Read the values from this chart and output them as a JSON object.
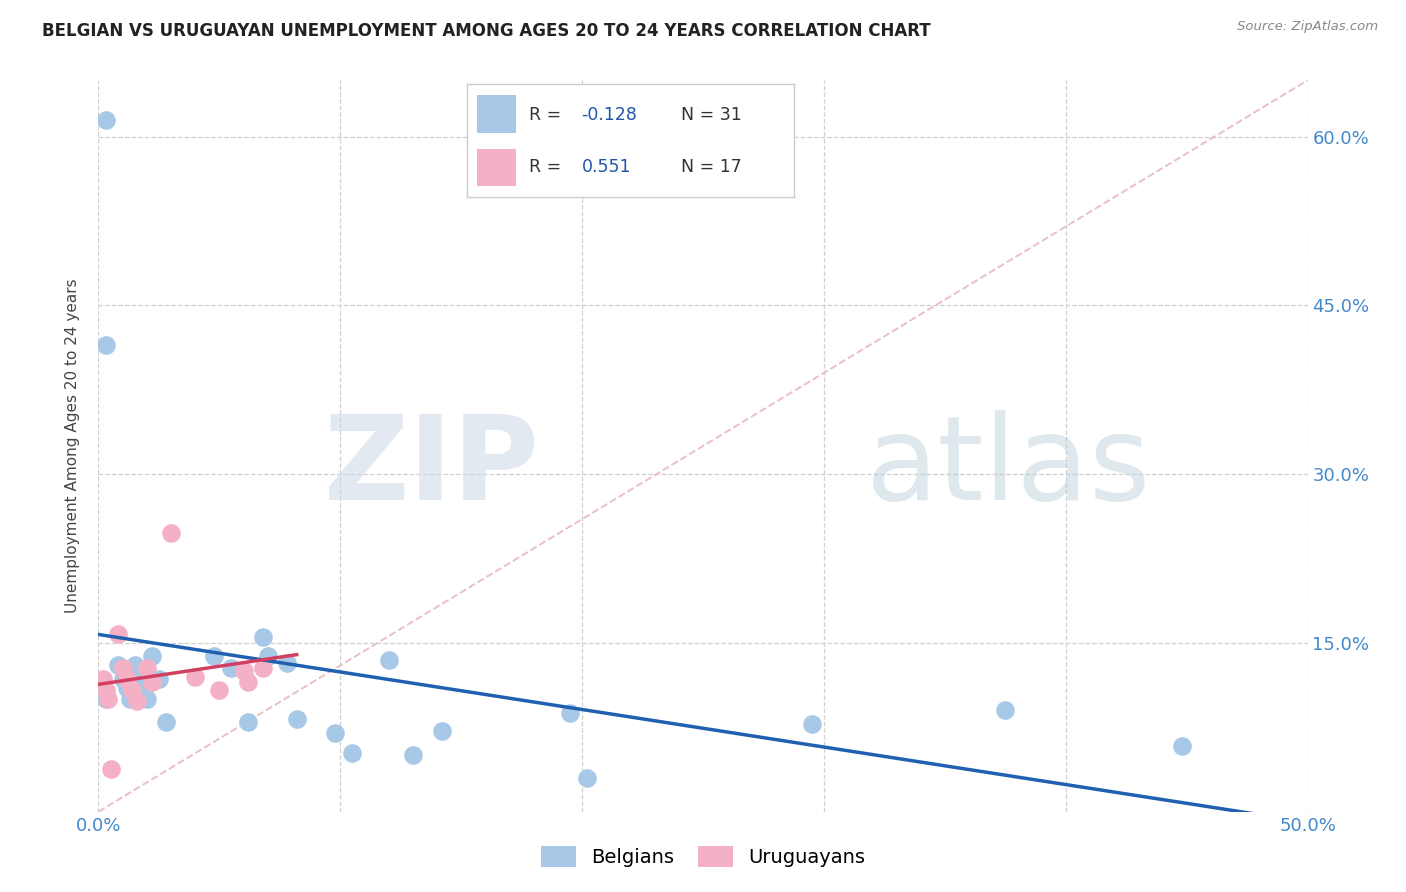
{
  "title": "BELGIAN VS URUGUAYAN UNEMPLOYMENT AMONG AGES 20 TO 24 YEARS CORRELATION CHART",
  "source": "Source: ZipAtlas.com",
  "ylabel": "Unemployment Among Ages 20 to 24 years",
  "xlim": [
    0.0,
    0.5
  ],
  "ylim": [
    0.0,
    0.65
  ],
  "belgian_R": "-0.128",
  "belgian_N": "31",
  "uruguayan_R": "0.551",
  "uruguayan_N": "17",
  "belgian_color": "#a8c8e8",
  "uruguayan_color": "#f4b0c4",
  "line_belgian_color": "#2060b0",
  "line_uruguayan_color": "#d04060",
  "diagonal_color": "#e8b8c0",
  "background_color": "#ffffff",
  "grid_color": "#d0d0d0",
  "title_color": "#222222",
  "source_color": "#888888",
  "tick_color": "#4488cc",
  "ylabel_color": "#444444",
  "belgian_x": [
    0.003,
    0.003,
    0.003,
    0.008,
    0.01,
    0.012,
    0.013,
    0.015,
    0.017,
    0.018,
    0.02,
    0.022,
    0.025,
    0.028,
    0.048,
    0.055,
    0.062,
    0.068,
    0.07,
    0.078,
    0.082,
    0.098,
    0.105,
    0.12,
    0.13,
    0.142,
    0.195,
    0.202,
    0.295,
    0.375,
    0.448
  ],
  "belgian_y": [
    0.615,
    0.415,
    0.1,
    0.13,
    0.118,
    0.11,
    0.1,
    0.13,
    0.12,
    0.11,
    0.1,
    0.138,
    0.118,
    0.08,
    0.138,
    0.128,
    0.08,
    0.155,
    0.138,
    0.132,
    0.082,
    0.07,
    0.052,
    0.135,
    0.05,
    0.072,
    0.088,
    0.03,
    0.078,
    0.09,
    0.058
  ],
  "uruguayan_x": [
    0.002,
    0.003,
    0.004,
    0.005,
    0.008,
    0.01,
    0.012,
    0.014,
    0.016,
    0.02,
    0.022,
    0.03,
    0.04,
    0.05,
    0.06,
    0.062,
    0.068
  ],
  "uruguayan_y": [
    0.118,
    0.108,
    0.1,
    0.038,
    0.158,
    0.128,
    0.118,
    0.108,
    0.098,
    0.128,
    0.115,
    0.248,
    0.12,
    0.108,
    0.125,
    0.115,
    0.128
  ],
  "xtick_positions": [
    0.0,
    0.1,
    0.2,
    0.3,
    0.4,
    0.5
  ],
  "xtick_labels": [
    "0.0%",
    "",
    "",
    "",
    "",
    "50.0%"
  ],
  "ytick_positions": [
    0.0,
    0.15,
    0.3,
    0.45,
    0.6
  ],
  "right_ytick_labels": [
    "15.0%",
    "30.0%",
    "45.0%",
    "60.0%"
  ]
}
